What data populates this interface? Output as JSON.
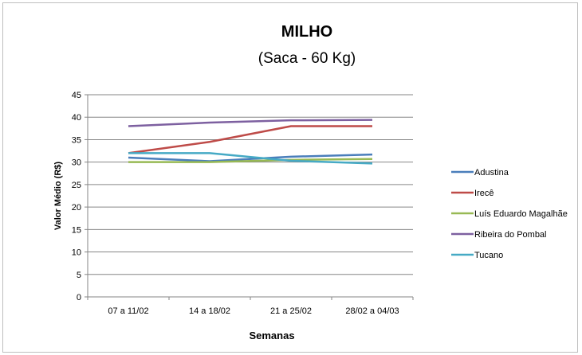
{
  "chart_data": {
    "type": "line",
    "title": "MILHO",
    "subtitle": "(Saca - 60 Kg)",
    "xlabel": "Semanas",
    "ylabel": "Valor Médio (R$)",
    "ylim": [
      0,
      45
    ],
    "yticks": [
      0,
      5,
      10,
      15,
      20,
      25,
      30,
      35,
      40,
      45
    ],
    "grid": true,
    "legend_position": "right",
    "categories": [
      "07 a 11/02",
      "14 a 18/02",
      "21 a 25/02",
      "28/02 a 04/03"
    ],
    "series": [
      {
        "name": "Adustina",
        "color": "#4a7ebb",
        "values": [
          31.0,
          30.2,
          31.2,
          31.7
        ]
      },
      {
        "name": "Irecê",
        "color": "#be4b48",
        "values": [
          32.0,
          34.5,
          38.0,
          38.0
        ]
      },
      {
        "name": "Luís Eduardo Magalhãe",
        "color": "#98b954",
        "values": [
          30.0,
          30.0,
          30.5,
          30.7
        ]
      },
      {
        "name": "Ribeira do Pombal",
        "color": "#7d60a0",
        "values": [
          38.0,
          38.8,
          39.3,
          39.4
        ]
      },
      {
        "name": "Tucano",
        "color": "#46aac5",
        "values": [
          32.0,
          32.0,
          30.3,
          29.7
        ]
      }
    ]
  }
}
